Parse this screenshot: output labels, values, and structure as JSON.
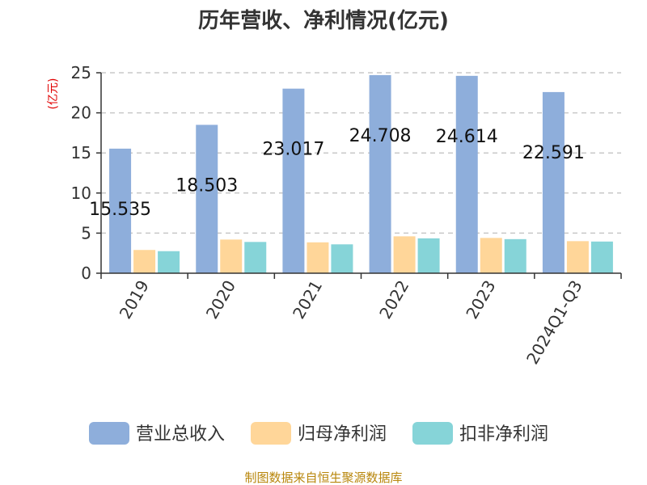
{
  "chart_data": {
    "type": "bar",
    "title": "历年营收、净利情况(亿元)",
    "ylabel": "(亿元)",
    "categories": [
      "2019",
      "2020",
      "2021",
      "2022",
      "2023",
      "2024Q1-Q3"
    ],
    "ylim": [
      0,
      25
    ],
    "yticks": [
      "0",
      "5",
      "10",
      "15",
      "20",
      "25"
    ],
    "grid": true,
    "legend_position": "bottom",
    "series": [
      {
        "name": "营业总收入",
        "color": "#8eaedb",
        "values": [
          15.535,
          18.503,
          23.017,
          24.708,
          24.614,
          22.591
        ],
        "labels": [
          "15.535",
          "18.503",
          "23.017",
          "24.708",
          "24.614",
          "22.591"
        ]
      },
      {
        "name": "归母净利润",
        "color": "#ffd699",
        "values": [
          2.9,
          4.2,
          3.85,
          4.6,
          4.4,
          4.0
        ]
      },
      {
        "name": "扣非净利润",
        "color": "#86d4d8",
        "values": [
          2.75,
          3.9,
          3.6,
          4.35,
          4.25,
          3.95
        ]
      }
    ]
  },
  "source": "制图数据来自恒生聚源数据库"
}
